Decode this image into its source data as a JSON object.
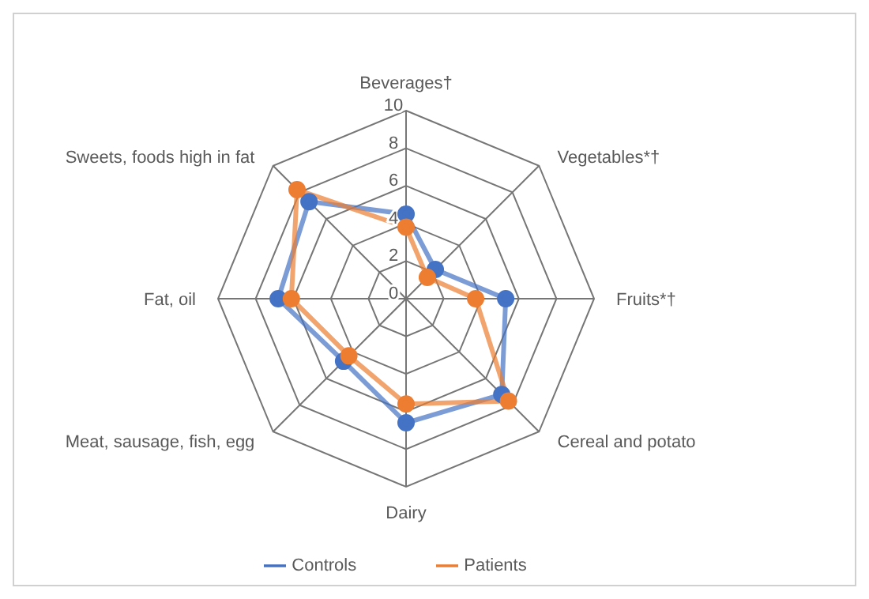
{
  "chart_data": {
    "type": "radar",
    "categories": [
      "Beverages†",
      "Vegetables*†",
      "Fruits*†",
      "Cereal and potato",
      "Dairy",
      "Meat, sausage, fish, egg",
      "Fat, oil",
      "Sweets, foods high in fat"
    ],
    "series": [
      {
        "name": "Controls",
        "color": "#4472c4",
        "values": [
          4.5,
          2.2,
          5.3,
          7.2,
          6.6,
          4.7,
          6.8,
          7.3
        ]
      },
      {
        "name": "Patients",
        "color": "#ed7d31",
        "values": [
          3.8,
          1.6,
          3.7,
          7.7,
          5.6,
          4.3,
          6.1,
          8.2
        ]
      }
    ],
    "ylim": [
      0,
      10
    ],
    "yticks": [
      0,
      2,
      4,
      6,
      8,
      10
    ],
    "grid": true,
    "legend": "bottom",
    "marker": "circle",
    "line_style": "solid"
  }
}
